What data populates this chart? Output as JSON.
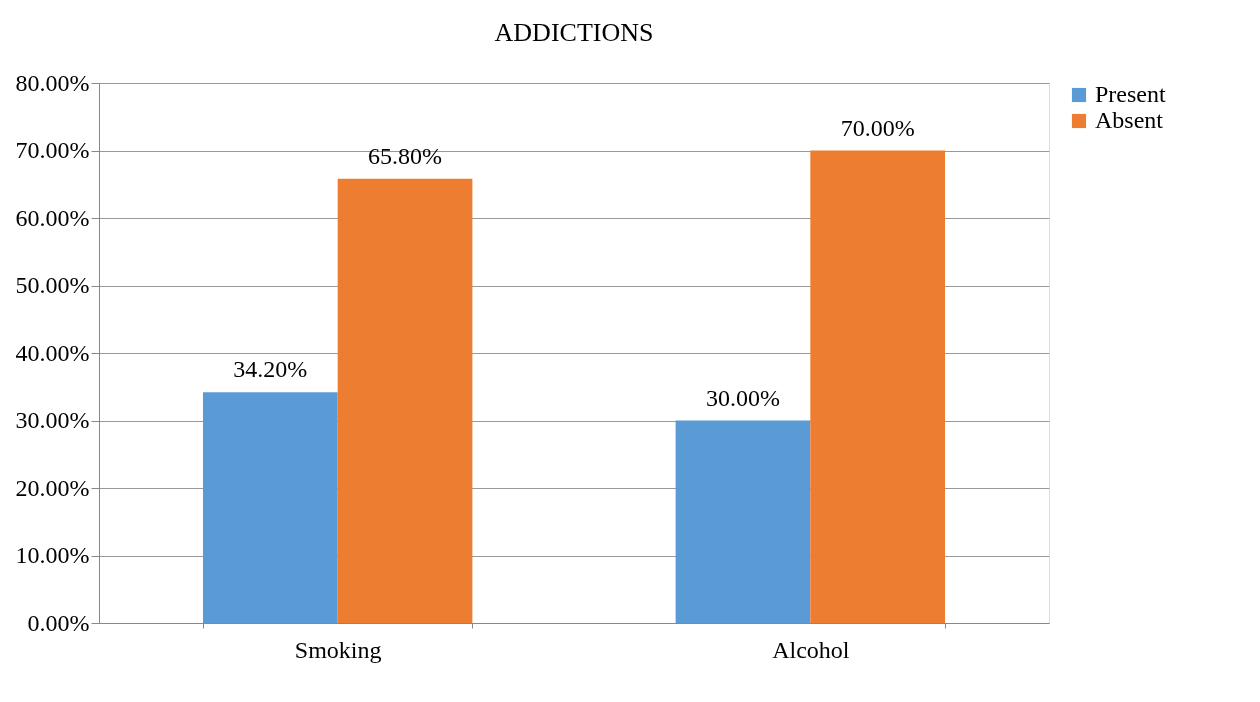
{
  "chart_data": {
    "type": "bar",
    "title": "ADDICTIONS",
    "categories": [
      "Smoking",
      "Alcohol"
    ],
    "series": [
      {
        "name": "Present",
        "color": "#5b9bd5",
        "values": [
          34.2,
          30.0
        ],
        "value_labels": [
          "34.20%",
          "30.00%"
        ]
      },
      {
        "name": "Absent",
        "color": "#ed7d31",
        "values": [
          65.8,
          70.0
        ],
        "value_labels": [
          "65.80%",
          "70.00%"
        ]
      }
    ],
    "ylim": [
      0,
      80
    ],
    "yticks": [
      {
        "value": 0,
        "label": "0.00%"
      },
      {
        "value": 10,
        "label": "10.00%"
      },
      {
        "value": 20,
        "label": "20.00%"
      },
      {
        "value": 30,
        "label": "30.00%"
      },
      {
        "value": 40,
        "label": "40.00%"
      },
      {
        "value": 50,
        "label": "50.00%"
      },
      {
        "value": 60,
        "label": "60.00%"
      },
      {
        "value": 70,
        "label": "70.00%"
      },
      {
        "value": 80,
        "label": "80.00%"
      }
    ],
    "grid": "y",
    "legend": "right"
  }
}
